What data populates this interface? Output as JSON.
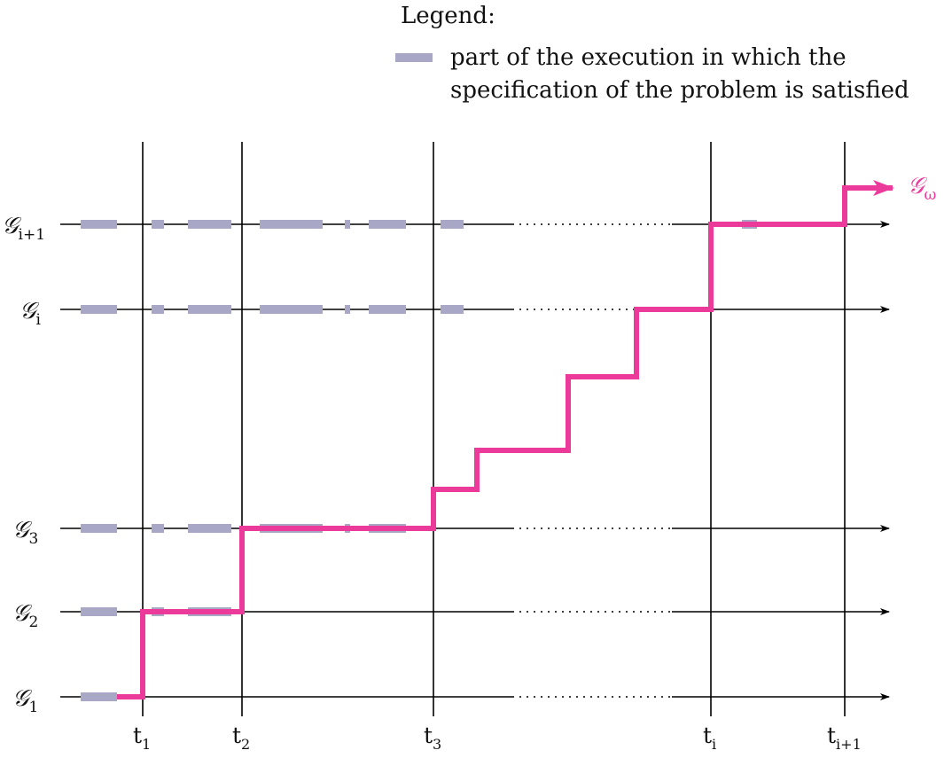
{
  "legend": {
    "title": "Legend:",
    "item_line1": "part of the execution in which the",
    "item_line2": "specification of the problem is satisfied",
    "swatch_color": "#a8a8c6"
  },
  "colors": {
    "axis": "#000000",
    "satisfied": "#a8a8c6",
    "execution_path": "#ec3a9b"
  },
  "graphs": [
    {
      "symbol": "𝒢",
      "sub": "1"
    },
    {
      "symbol": "𝒢",
      "sub": "2"
    },
    {
      "symbol": "𝒢",
      "sub": "3"
    },
    {
      "symbol": "𝒢",
      "sub": "i"
    },
    {
      "symbol": "𝒢",
      "sub": "i+1"
    }
  ],
  "times": [
    {
      "symbol": "t",
      "sub": "1"
    },
    {
      "symbol": "t",
      "sub": "2"
    },
    {
      "symbol": "t",
      "sub": "3"
    },
    {
      "symbol": "t",
      "sub": "i"
    },
    {
      "symbol": "t",
      "sub": "i+1"
    }
  ],
  "limit": {
    "symbol": "𝒢",
    "sub": "ω"
  }
}
